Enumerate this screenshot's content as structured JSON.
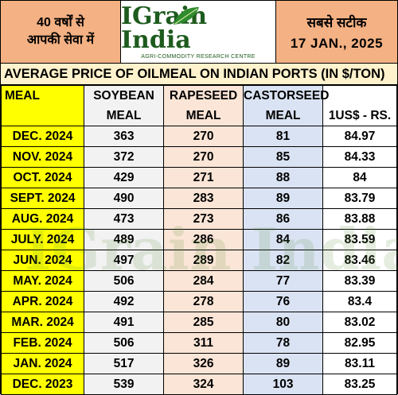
{
  "header": {
    "left_line1": "40 वर्षों से",
    "left_line2": "आपकी सेवा में",
    "logo_main": "IGrain India",
    "logo_sub": "AGRI-COMMODITY RESEARCH CENTRE",
    "right_line1": "सबसे सटीक",
    "right_line2": "17 JAN., 2025"
  },
  "title": "AVERAGE PRICE OF OILMEAL ON INDIAN PORTS (IN $/TON)",
  "columns": {
    "meal": "MEAL",
    "soy1": "SOYBEAN",
    "soy2": "MEAL",
    "rape1": "RAPESEED",
    "rape2": "MEAL",
    "cast1": "CASTORSEED",
    "cast2": "MEAL",
    "usd": "1US$ - RS."
  },
  "rows": [
    {
      "month": "DEC. 2024",
      "soybean": "363",
      "rapeseed": "270",
      "castorseed": "81",
      "usd": "84.97"
    },
    {
      "month": "NOV. 2024",
      "soybean": "372",
      "rapeseed": "270",
      "castorseed": "85",
      "usd": "84.33"
    },
    {
      "month": "OCT. 2024",
      "soybean": "429",
      "rapeseed": "271",
      "castorseed": "88",
      "usd": "84"
    },
    {
      "month": "SEPT. 2024",
      "soybean": "490",
      "rapeseed": "283",
      "castorseed": "89",
      "usd": "83.79"
    },
    {
      "month": "AUG. 2024",
      "soybean": "473",
      "rapeseed": "273",
      "castorseed": "86",
      "usd": "83.88"
    },
    {
      "month": "JULY. 2024",
      "soybean": "489",
      "rapeseed": "286",
      "castorseed": "84",
      "usd": "83.59"
    },
    {
      "month": "JUN. 2024",
      "soybean": "497",
      "rapeseed": "289",
      "castorseed": "82",
      "usd": "83.46"
    },
    {
      "month": "MAY. 2024",
      "soybean": "506",
      "rapeseed": "284",
      "castorseed": "77",
      "usd": "83.39"
    },
    {
      "month": "APR. 2024",
      "soybean": "492",
      "rapeseed": "278",
      "castorseed": "76",
      "usd": "83.4"
    },
    {
      "month": "MAR. 2024",
      "soybean": "491",
      "rapeseed": "285",
      "castorseed": "80",
      "usd": "83.02"
    },
    {
      "month": "FEB. 2024",
      "soybean": "506",
      "rapeseed": "311",
      "castorseed": "78",
      "usd": "82.95"
    },
    {
      "month": "JAN. 2024",
      "soybean": "517",
      "rapeseed": "326",
      "castorseed": "89",
      "usd": "83.11"
    },
    {
      "month": "DEC. 2023",
      "soybean": "539",
      "rapeseed": "324",
      "castorseed": "103",
      "usd": "83.25"
    }
  ],
  "watermark": "IGrain India"
}
